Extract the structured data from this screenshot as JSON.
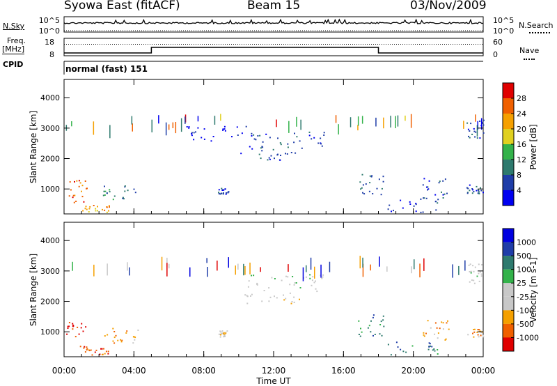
{
  "header": {
    "station": "Syowa East (fitACF)",
    "beam": "Beam 15",
    "date": "03/Nov/2009"
  },
  "labels": {
    "nsky": "N.Sky",
    "freq": "Freq.",
    "freq_unit": "[MHz]",
    "cpid": "CPID",
    "nsearch": "N.Search",
    "nave": "Nave",
    "mode": "normal (fast) 151"
  },
  "colors": {
    "power": [
      "#0000f0",
      "#1f3da8",
      "#2e7a6e",
      "#33b24a",
      "#e0d020",
      "#f5a000",
      "#f06000",
      "#e00000"
    ],
    "velocity": [
      "#e00000",
      "#f06000",
      "#f5a000",
      "#c8c8c8",
      "#c8c8c8",
      "#33b24a",
      "#2e7a6e",
      "#1f3da8",
      "#0000e0"
    ]
  },
  "chart_data": [
    {
      "type": "line",
      "name": "nsky-panel",
      "y_tick_labels": [
        "10^5",
        "10^0"
      ],
      "right_tick_labels": [
        "10^5",
        "10^0"
      ],
      "x_range": [
        0,
        24
      ]
    },
    {
      "type": "line",
      "name": "freq-panel",
      "y_tick_labels": [
        "18",
        "8"
      ],
      "right_tick_labels": [
        "60",
        "0"
      ],
      "ylim": [
        8,
        18
      ],
      "right_ylim": [
        0,
        60
      ],
      "freq_steps": [
        {
          "from": 0,
          "to": 5,
          "value": 10
        },
        {
          "from": 5,
          "to": 18,
          "value": 14
        },
        {
          "from": 18,
          "to": 24,
          "value": 10
        }
      ],
      "nave_level": 45
    },
    {
      "type": "heatmap",
      "name": "power-panel",
      "ylabel": "Slant Range [km]",
      "y_ticks": [
        1000,
        2000,
        3000,
        4000
      ],
      "ylim": [
        180,
        4600
      ],
      "xlim": [
        0,
        24
      ],
      "colorbar_label": "Power [dB]",
      "colorbar_ticks": [
        "4",
        "8",
        "12",
        "16",
        "20",
        "24",
        "28"
      ],
      "regions": [
        {
          "t0": 0.0,
          "t1": 1.3,
          "r0": 500,
          "r1": 1350,
          "level": 6
        },
        {
          "t0": 1.0,
          "t1": 2.6,
          "r0": 250,
          "r1": 500,
          "level": 5
        },
        {
          "t0": 2.2,
          "t1": 4.3,
          "r0": 650,
          "r1": 1150,
          "level": 2
        },
        {
          "t0": 8.8,
          "t1": 9.4,
          "r0": 850,
          "r1": 1050,
          "level": 1
        },
        {
          "t0": 10.5,
          "t1": 15.0,
          "r0": 2350,
          "r1": 2900,
          "level": 1
        },
        {
          "t0": 10.0,
          "t1": 13.5,
          "r0": 1950,
          "r1": 2350,
          "level": 1
        },
        {
          "t0": 7.0,
          "t1": 10.5,
          "r0": 2600,
          "r1": 3100,
          "level": 0
        },
        {
          "t0": 16.8,
          "t1": 18.3,
          "r0": 800,
          "r1": 1600,
          "level": 1
        },
        {
          "t0": 18.5,
          "t1": 21.5,
          "r0": 250,
          "r1": 700,
          "level": 1
        },
        {
          "t0": 20.5,
          "t1": 22.0,
          "r0": 700,
          "r1": 1400,
          "level": 1
        },
        {
          "t0": 23.0,
          "t1": 24.0,
          "r0": 2600,
          "r1": 3300,
          "level": 1
        },
        {
          "t0": 23.0,
          "t1": 24.0,
          "r0": 850,
          "r1": 1150,
          "level": 1
        }
      ]
    },
    {
      "type": "heatmap",
      "name": "velocity-panel",
      "ylabel": "Slant Range [km]",
      "y_ticks": [
        1000,
        2000,
        3000,
        4000
      ],
      "ylim": [
        180,
        4600
      ],
      "xlim": [
        0,
        24
      ],
      "xlabel": "Time UT",
      "x_tick_labels": [
        "00:00",
        "04:00",
        "08:00",
        "12:00",
        "16:00",
        "20:00",
        "00:00"
      ],
      "colorbar_label": "Velocity [m s-1]",
      "colorbar_ticks": [
        "1000",
        "500",
        "100",
        "25",
        "-25",
        "-100",
        "-500",
        "-1000"
      ],
      "regions": [
        {
          "t0": 0.0,
          "t1": 1.3,
          "r0": 500,
          "r1": 1350,
          "level": 0
        },
        {
          "t0": 1.0,
          "t1": 2.6,
          "r0": 250,
          "r1": 500,
          "level": 1
        },
        {
          "t0": 2.2,
          "t1": 4.3,
          "r0": 650,
          "r1": 1150,
          "level": 2
        },
        {
          "t0": 8.8,
          "t1": 9.4,
          "r0": 850,
          "r1": 1050,
          "level": 3
        },
        {
          "t0": 10.5,
          "t1": 15.0,
          "r0": 2350,
          "r1": 2900,
          "level": 4
        },
        {
          "t0": 10.0,
          "t1": 13.5,
          "r0": 1950,
          "r1": 2350,
          "level": 3
        },
        {
          "t0": 16.8,
          "t1": 18.3,
          "r0": 800,
          "r1": 1600,
          "level": 6
        },
        {
          "t0": 18.5,
          "t1": 21.5,
          "r0": 250,
          "r1": 700,
          "level": 6
        },
        {
          "t0": 20.5,
          "t1": 22.0,
          "r0": 700,
          "r1": 1400,
          "level": 2
        },
        {
          "t0": 23.0,
          "t1": 24.0,
          "r0": 2600,
          "r1": 3300,
          "level": 4
        },
        {
          "t0": 23.0,
          "t1": 24.0,
          "r0": 850,
          "r1": 1150,
          "level": 2
        }
      ]
    }
  ]
}
